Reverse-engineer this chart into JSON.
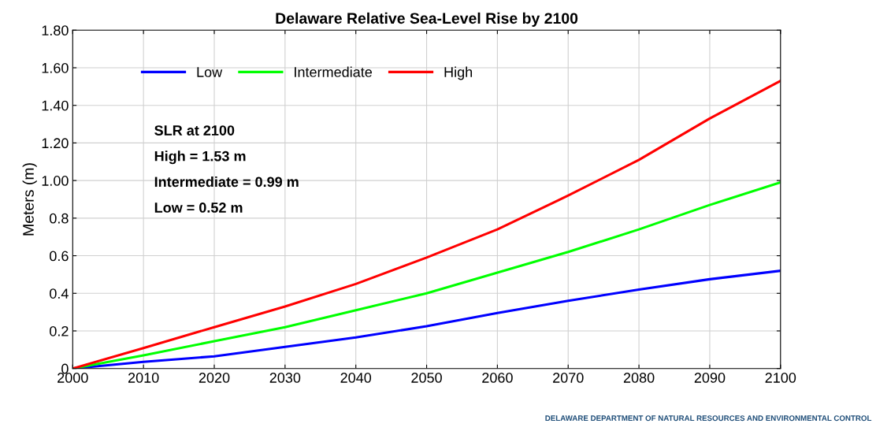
{
  "chart_data": {
    "type": "line",
    "title": "Delaware Relative Sea-Level Rise by 2100",
    "ylabel": "Meters (m)",
    "x": [
      2000,
      2010,
      2020,
      2030,
      2040,
      2050,
      2060,
      2070,
      2080,
      2090,
      2100
    ],
    "series": [
      {
        "name": "Low",
        "color": "#0000ff",
        "values": [
          0,
          0.035,
          0.065,
          0.115,
          0.165,
          0.225,
          0.295,
          0.36,
          0.42,
          0.475,
          0.52
        ]
      },
      {
        "name": "Intermediate",
        "color": "#00ff00",
        "values": [
          0,
          0.07,
          0.145,
          0.22,
          0.31,
          0.4,
          0.51,
          0.62,
          0.74,
          0.87,
          0.99
        ]
      },
      {
        "name": "High",
        "color": "#ff0000",
        "values": [
          0,
          0.109,
          0.22,
          0.33,
          0.45,
          0.59,
          0.74,
          0.92,
          1.11,
          1.33,
          1.53
        ]
      }
    ],
    "xlim": [
      2000,
      2100
    ],
    "xticks": [
      2000,
      2010,
      2020,
      2030,
      2040,
      2050,
      2060,
      2070,
      2080,
      2090,
      2100
    ],
    "ylim": [
      0,
      1.8
    ],
    "yticks": [
      0,
      0.2,
      0.4,
      0.6,
      0.8,
      {
        "value": 1.0,
        "label": "1.00"
      },
      {
        "value": 1.2,
        "label": "1.20"
      },
      {
        "value": 1.4,
        "label": "1.40"
      },
      {
        "value": 1.6,
        "label": "1.60"
      },
      {
        "value": 1.8,
        "label": "1.80"
      }
    ],
    "grid": true,
    "legend": "top left",
    "marker": "none",
    "line_style": "solid",
    "annotations": [
      "SLR at 2100",
      "High = 1.53 m",
      "Intermediate = 0.99 m",
      "Low = 0.52 m",
      "DELAWARE DEPARTMENT OF NATURAL RESOURCES AND ENVIRONMENTAL CONTROL"
    ]
  }
}
